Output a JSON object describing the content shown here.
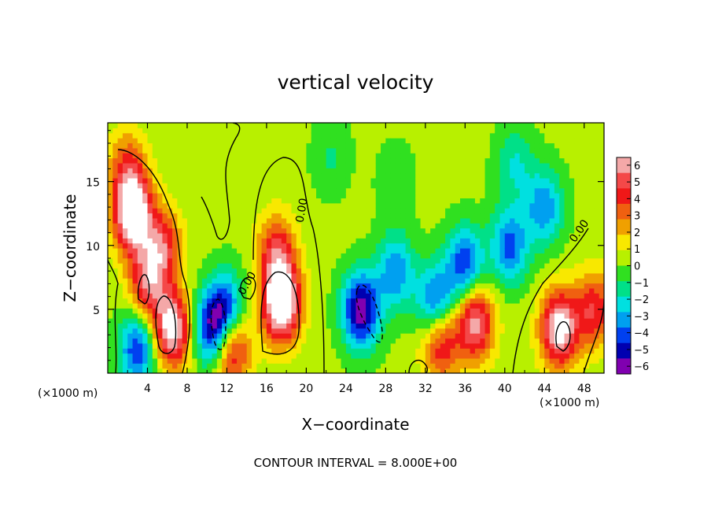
{
  "chart_data": {
    "type": "heatmap",
    "title": "vertical velocity",
    "xlabel": "X−coordinate",
    "ylabel": "Z−coordinate",
    "x_unit_label": "(×1000 m)",
    "x_unit_label_right": "(×1000 m)",
    "xlim": [
      0,
      50
    ],
    "ylim": [
      0,
      19.6
    ],
    "x_ticks": [
      4,
      8,
      12,
      16,
      20,
      24,
      28,
      32,
      36,
      40,
      44,
      48
    ],
    "x_tick_labels": [
      "4",
      "8",
      "12",
      "16",
      "20",
      "24",
      "28",
      "32",
      "36",
      "40",
      "44",
      "48"
    ],
    "y_ticks": [
      5,
      10,
      15
    ],
    "y_tick_labels": [
      "5",
      "10",
      "15"
    ],
    "colorbar": {
      "min": -6,
      "max": 6,
      "ticks": [
        6,
        5,
        4,
        3,
        2,
        1,
        0,
        -1,
        -2,
        -3,
        -4,
        -5,
        -6
      ],
      "tick_labels": [
        "6",
        "5",
        "4",
        "3",
        "2",
        "1",
        "0",
        "−1",
        "−2",
        "−3",
        "−4",
        "−5",
        "−6"
      ],
      "colors": [
        "#f4a8a8",
        "#f44848",
        "#f01818",
        "#f06010",
        "#f0a000",
        "#f8e800",
        "#b8f000",
        "#30e020",
        "#00e088",
        "#00e0e0",
        "#00a0f0",
        "#0040f0",
        "#0000b0",
        "#8000b0"
      ]
    },
    "contour_labels": [
      "0.00",
      "0.00",
      "0.00"
    ],
    "footer": "CONTOUR INTERVAL = 8.000E+00",
    "features": [
      {
        "x": 2.5,
        "z": 12.5,
        "w": 7.5
      },
      {
        "x": 5.5,
        "z": 10.0,
        "w": 4.0
      },
      {
        "x": 6.5,
        "z": 3.5,
        "w": 6.5
      },
      {
        "x": 4.0,
        "z": 7.0,
        "w": 4.5
      },
      {
        "x": 2.0,
        "z": 16.0,
        "w": 3.0
      },
      {
        "x": 3.0,
        "z": 2.0,
        "w": -4.5
      },
      {
        "x": 10.5,
        "z": 3.5,
        "w": -5.0
      },
      {
        "x": 12.0,
        "z": 5.0,
        "w": -4.0
      },
      {
        "x": 12.5,
        "z": 2.0,
        "w": 5.0
      },
      {
        "x": 17.5,
        "z": 5.5,
        "w": 8.0
      },
      {
        "x": 17.0,
        "z": 9.5,
        "w": 4.0
      },
      {
        "x": 25.5,
        "z": 5.0,
        "w": -6.0
      },
      {
        "x": 29.0,
        "z": 8.0,
        "w": -3.5
      },
      {
        "x": 33.0,
        "z": 5.5,
        "w": -4.5
      },
      {
        "x": 33.5,
        "z": 2.5,
        "w": 4.5
      },
      {
        "x": 37.0,
        "z": 4.0,
        "w": 5.5
      },
      {
        "x": 36.0,
        "z": 8.5,
        "w": -4.5
      },
      {
        "x": 40.5,
        "z": 10.0,
        "w": -4.0
      },
      {
        "x": 44.0,
        "z": 13.0,
        "w": -3.5
      },
      {
        "x": 45.5,
        "z": 3.5,
        "w": 6.5
      },
      {
        "x": 49.0,
        "z": 5.0,
        "w": 4.0
      },
      {
        "x": 41.0,
        "z": 16.5,
        "w": -2.0
      },
      {
        "x": 22.5,
        "z": 17.0,
        "w": -1.2
      },
      {
        "x": 29.0,
        "z": 15.0,
        "w": -1.0
      }
    ]
  }
}
